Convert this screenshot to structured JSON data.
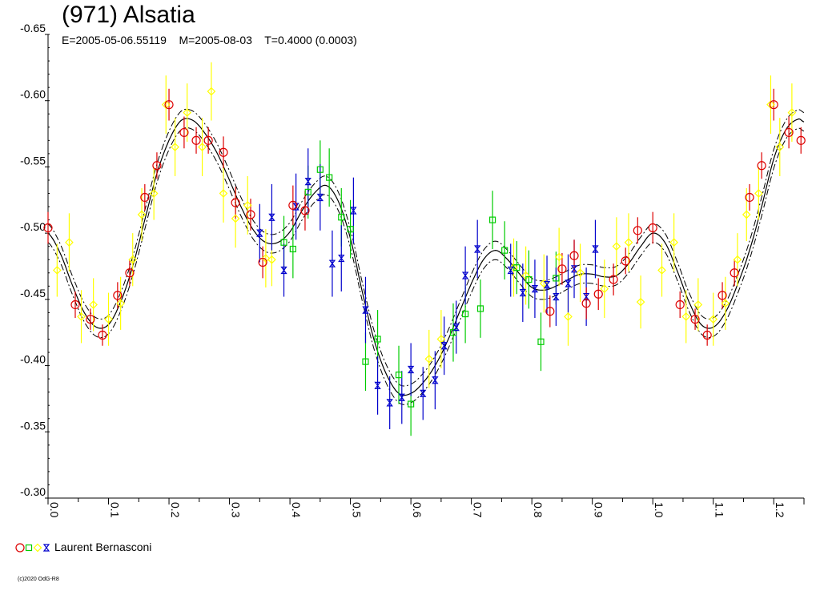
{
  "chart_data": {
    "type": "scatter",
    "title": "(971) Alsatia",
    "subtitle": "E=2005-05-06.55119    M=2005-08-03    T=0.4000 (0.0003)",
    "xlabel": "",
    "ylabel": "",
    "xlim": [
      0.0,
      1.25
    ],
    "ylim": [
      -0.65,
      -0.3
    ],
    "y_inverted": true,
    "y_ticks": [
      "-0.65",
      "-0.60",
      "-0.55",
      "-0.50",
      "-0.45",
      "-0.40",
      "-0.35",
      "-0.30"
    ],
    "x_ticks": [
      "0.0",
      "0.1",
      "0.2",
      "0.3",
      "0.4",
      "0.5",
      "0.6",
      "0.7",
      "0.8",
      "0.9",
      "1.0",
      "1.1",
      "1.2"
    ],
    "grid": false,
    "legend_position": "bottom-left",
    "legend_label": "Laurent Bernasconi",
    "fit_curve": {
      "x": [
        0.0,
        0.02,
        0.04,
        0.06,
        0.08,
        0.1,
        0.12,
        0.14,
        0.16,
        0.18,
        0.2,
        0.22,
        0.24,
        0.26,
        0.28,
        0.3,
        0.32,
        0.34,
        0.36,
        0.38,
        0.4,
        0.42,
        0.44,
        0.46,
        0.48,
        0.5,
        0.52,
        0.54,
        0.56,
        0.58,
        0.6,
        0.62,
        0.64,
        0.66,
        0.68,
        0.7,
        0.72,
        0.74,
        0.76,
        0.78,
        0.8,
        0.82,
        0.84,
        0.86,
        0.88,
        0.9,
        0.92,
        0.94,
        0.96,
        0.98,
        1.0,
        1.02,
        1.04,
        1.06,
        1.08,
        1.1,
        1.12,
        1.14,
        1.16,
        1.18,
        1.2,
        1.22,
        1.24,
        1.25
      ],
      "y": [
        -0.5,
        -0.485,
        -0.461,
        -0.44,
        -0.429,
        -0.431,
        -0.448,
        -0.475,
        -0.51,
        -0.545,
        -0.57,
        -0.585,
        -0.585,
        -0.575,
        -0.56,
        -0.54,
        -0.519,
        -0.502,
        -0.493,
        -0.493,
        -0.501,
        -0.517,
        -0.53,
        -0.536,
        -0.524,
        -0.496,
        -0.455,
        -0.418,
        -0.393,
        -0.379,
        -0.379,
        -0.387,
        -0.4,
        -0.418,
        -0.44,
        -0.462,
        -0.48,
        -0.487,
        -0.48,
        -0.469,
        -0.459,
        -0.457,
        -0.46,
        -0.465,
        -0.469,
        -0.469,
        -0.467,
        -0.468,
        -0.477,
        -0.49,
        -0.5,
        -0.493,
        -0.472,
        -0.448,
        -0.431,
        -0.429,
        -0.44,
        -0.461,
        -0.487,
        -0.52,
        -0.556,
        -0.578,
        -0.586,
        -0.584
      ],
      "band": 0.007
    },
    "series": [
      {
        "name": "",
        "marker": "circle",
        "color": "#dd0000",
        "points": [
          {
            "x": 0.0,
            "y": -0.504,
            "e": 0.012
          },
          {
            "x": 0.045,
            "y": -0.446,
            "e": 0.01
          },
          {
            "x": 0.07,
            "y": -0.435,
            "e": 0.008
          },
          {
            "x": 0.09,
            "y": -0.423,
            "e": 0.008
          },
          {
            "x": 0.115,
            "y": -0.453,
            "e": 0.01
          },
          {
            "x": 0.135,
            "y": -0.47,
            "e": 0.01
          },
          {
            "x": 0.16,
            "y": -0.527,
            "e": 0.01
          },
          {
            "x": 0.18,
            "y": -0.551,
            "e": 0.01
          },
          {
            "x": 0.2,
            "y": -0.597,
            "e": 0.012
          },
          {
            "x": 0.225,
            "y": -0.576,
            "e": 0.012
          },
          {
            "x": 0.245,
            "y": -0.57,
            "e": 0.01
          },
          {
            "x": 0.265,
            "y": -0.57,
            "e": 0.01
          },
          {
            "x": 0.29,
            "y": -0.561,
            "e": 0.012
          },
          {
            "x": 0.31,
            "y": -0.523,
            "e": 0.012
          },
          {
            "x": 0.335,
            "y": -0.514,
            "e": 0.012
          },
          {
            "x": 0.355,
            "y": -0.478,
            "e": 0.012
          },
          {
            "x": 0.405,
            "y": -0.521,
            "e": 0.015
          },
          {
            "x": 0.425,
            "y": -0.517,
            "e": 0.015
          },
          {
            "x": 0.83,
            "y": -0.441,
            "e": 0.012
          },
          {
            "x": 0.85,
            "y": -0.473,
            "e": 0.012
          },
          {
            "x": 0.87,
            "y": -0.483,
            "e": 0.012
          },
          {
            "x": 0.89,
            "y": -0.447,
            "e": 0.012
          },
          {
            "x": 0.91,
            "y": -0.454,
            "e": 0.012
          },
          {
            "x": 0.935,
            "y": -0.465,
            "e": 0.012
          },
          {
            "x": 0.955,
            "y": -0.479,
            "e": 0.01
          },
          {
            "x": 0.975,
            "y": -0.502,
            "e": 0.01
          },
          {
            "x": 1.0,
            "y": -0.504,
            "e": 0.012
          },
          {
            "x": 1.045,
            "y": -0.446,
            "e": 0.01
          },
          {
            "x": 1.07,
            "y": -0.435,
            "e": 0.008
          },
          {
            "x": 1.09,
            "y": -0.423,
            "e": 0.008
          },
          {
            "x": 1.115,
            "y": -0.453,
            "e": 0.01
          },
          {
            "x": 1.135,
            "y": -0.47,
            "e": 0.01
          },
          {
            "x": 1.16,
            "y": -0.527,
            "e": 0.01
          },
          {
            "x": 1.18,
            "y": -0.551,
            "e": 0.01
          },
          {
            "x": 1.2,
            "y": -0.597,
            "e": 0.012
          },
          {
            "x": 1.225,
            "y": -0.576,
            "e": 0.012
          },
          {
            "x": 1.245,
            "y": -0.57,
            "e": 0.01
          }
        ]
      },
      {
        "name": "",
        "marker": "square",
        "color": "#00cc00",
        "points": [
          {
            "x": 0.39,
            "y": -0.493,
            "e": 0.02
          },
          {
            "x": 0.405,
            "y": -0.488,
            "e": 0.022
          },
          {
            "x": 0.43,
            "y": -0.531,
            "e": 0.02
          },
          {
            "x": 0.45,
            "y": -0.548,
            "e": 0.022
          },
          {
            "x": 0.465,
            "y": -0.542,
            "e": 0.022
          },
          {
            "x": 0.485,
            "y": -0.512,
            "e": 0.022
          },
          {
            "x": 0.5,
            "y": -0.503,
            "e": 0.022
          },
          {
            "x": 0.525,
            "y": -0.403,
            "e": 0.022
          },
          {
            "x": 0.545,
            "y": -0.42,
            "e": 0.022
          },
          {
            "x": 0.58,
            "y": -0.393,
            "e": 0.022
          },
          {
            "x": 0.6,
            "y": -0.371,
            "e": 0.024
          },
          {
            "x": 0.67,
            "y": -0.425,
            "e": 0.022
          },
          {
            "x": 0.69,
            "y": -0.439,
            "e": 0.022
          },
          {
            "x": 0.715,
            "y": -0.443,
            "e": 0.022
          },
          {
            "x": 0.735,
            "y": -0.51,
            "e": 0.022
          },
          {
            "x": 0.755,
            "y": -0.487,
            "e": 0.022
          },
          {
            "x": 0.775,
            "y": -0.474,
            "e": 0.02
          },
          {
            "x": 0.795,
            "y": -0.465,
            "e": 0.022
          },
          {
            "x": 0.815,
            "y": -0.418,
            "e": 0.022
          },
          {
            "x": 0.84,
            "y": -0.466,
            "e": 0.02
          }
        ]
      },
      {
        "name": "",
        "marker": "diamond",
        "color": "#ffff00",
        "points": [
          {
            "x": 0.015,
            "y": -0.472,
            "e": 0.02
          },
          {
            "x": 0.035,
            "y": -0.493,
            "e": 0.022
          },
          {
            "x": 0.055,
            "y": -0.437,
            "e": 0.02
          },
          {
            "x": 0.075,
            "y": -0.446,
            "e": 0.02
          },
          {
            "x": 0.1,
            "y": -0.435,
            "e": 0.02
          },
          {
            "x": 0.12,
            "y": -0.447,
            "e": 0.02
          },
          {
            "x": 0.14,
            "y": -0.48,
            "e": 0.02
          },
          {
            "x": 0.155,
            "y": -0.514,
            "e": 0.02
          },
          {
            "x": 0.175,
            "y": -0.53,
            "e": 0.02
          },
          {
            "x": 0.195,
            "y": -0.597,
            "e": 0.022
          },
          {
            "x": 0.21,
            "y": -0.565,
            "e": 0.022
          },
          {
            "x": 0.23,
            "y": -0.591,
            "e": 0.022
          },
          {
            "x": 0.255,
            "y": -0.565,
            "e": 0.022
          },
          {
            "x": 0.27,
            "y": -0.607,
            "e": 0.022
          },
          {
            "x": 0.29,
            "y": -0.53,
            "e": 0.022
          },
          {
            "x": 0.31,
            "y": -0.511,
            "e": 0.022
          },
          {
            "x": 0.33,
            "y": -0.521,
            "e": 0.022
          },
          {
            "x": 0.36,
            "y": -0.481,
            "e": 0.022
          },
          {
            "x": 0.37,
            "y": -0.48,
            "e": 0.02
          },
          {
            "x": 0.63,
            "y": -0.405,
            "e": 0.022
          },
          {
            "x": 0.65,
            "y": -0.42,
            "e": 0.022
          },
          {
            "x": 0.77,
            "y": -0.474,
            "e": 0.022
          },
          {
            "x": 0.79,
            "y": -0.468,
            "e": 0.022
          },
          {
            "x": 0.82,
            "y": -0.462,
            "e": 0.022
          },
          {
            "x": 0.845,
            "y": -0.482,
            "e": 0.022
          },
          {
            "x": 0.86,
            "y": -0.437,
            "e": 0.022
          },
          {
            "x": 0.88,
            "y": -0.47,
            "e": 0.022
          },
          {
            "x": 0.92,
            "y": -0.458,
            "e": 0.022
          },
          {
            "x": 0.94,
            "y": -0.49,
            "e": 0.022
          },
          {
            "x": 0.96,
            "y": -0.493,
            "e": 0.022
          },
          {
            "x": 0.98,
            "y": -0.448,
            "e": 0.02
          },
          {
            "x": 1.015,
            "y": -0.472,
            "e": 0.02
          },
          {
            "x": 1.035,
            "y": -0.493,
            "e": 0.022
          },
          {
            "x": 1.055,
            "y": -0.437,
            "e": 0.02
          },
          {
            "x": 1.075,
            "y": -0.446,
            "e": 0.02
          },
          {
            "x": 1.1,
            "y": -0.435,
            "e": 0.02
          },
          {
            "x": 1.12,
            "y": -0.447,
            "e": 0.02
          },
          {
            "x": 1.14,
            "y": -0.48,
            "e": 0.02
          },
          {
            "x": 1.155,
            "y": -0.514,
            "e": 0.02
          },
          {
            "x": 1.175,
            "y": -0.53,
            "e": 0.02
          },
          {
            "x": 1.195,
            "y": -0.597,
            "e": 0.022
          },
          {
            "x": 1.21,
            "y": -0.565,
            "e": 0.022
          },
          {
            "x": 1.23,
            "y": -0.591,
            "e": 0.022
          }
        ]
      },
      {
        "name": "",
        "marker": "hourglass",
        "color": "#0000cc",
        "points": [
          {
            "x": 0.35,
            "y": -0.5,
            "e": 0.022
          },
          {
            "x": 0.37,
            "y": -0.512,
            "e": 0.025
          },
          {
            "x": 0.39,
            "y": -0.472,
            "e": 0.02
          },
          {
            "x": 0.41,
            "y": -0.52,
            "e": 0.025
          },
          {
            "x": 0.43,
            "y": -0.539,
            "e": 0.025
          },
          {
            "x": 0.45,
            "y": -0.527,
            "e": 0.025
          },
          {
            "x": 0.47,
            "y": -0.477,
            "e": 0.025
          },
          {
            "x": 0.485,
            "y": -0.481,
            "e": 0.025
          },
          {
            "x": 0.505,
            "y": -0.517,
            "e": 0.025
          },
          {
            "x": 0.525,
            "y": -0.442,
            "e": 0.025
          },
          {
            "x": 0.545,
            "y": -0.385,
            "e": 0.022
          },
          {
            "x": 0.565,
            "y": -0.372,
            "e": 0.02
          },
          {
            "x": 0.585,
            "y": -0.376,
            "e": 0.02
          },
          {
            "x": 0.6,
            "y": -0.397,
            "e": 0.02
          },
          {
            "x": 0.62,
            "y": -0.379,
            "e": 0.02
          },
          {
            "x": 0.64,
            "y": -0.389,
            "e": 0.022
          },
          {
            "x": 0.655,
            "y": -0.415,
            "e": 0.022
          },
          {
            "x": 0.675,
            "y": -0.429,
            "e": 0.02
          },
          {
            "x": 0.69,
            "y": -0.468,
            "e": 0.022
          },
          {
            "x": 0.71,
            "y": -0.488,
            "e": 0.022
          },
          {
            "x": 0.765,
            "y": -0.472,
            "e": 0.02
          },
          {
            "x": 0.785,
            "y": -0.455,
            "e": 0.022
          },
          {
            "x": 0.805,
            "y": -0.458,
            "e": 0.022
          },
          {
            "x": 0.825,
            "y": -0.461,
            "e": 0.022
          },
          {
            "x": 0.84,
            "y": -0.452,
            "e": 0.022
          },
          {
            "x": 0.86,
            "y": -0.462,
            "e": 0.022
          },
          {
            "x": 0.87,
            "y": -0.473,
            "e": 0.022
          },
          {
            "x": 0.89,
            "y": -0.452,
            "e": 0.022
          },
          {
            "x": 0.905,
            "y": -0.488,
            "e": 0.022
          }
        ]
      }
    ],
    "copyright": "(c)2020 OdG-R8"
  }
}
